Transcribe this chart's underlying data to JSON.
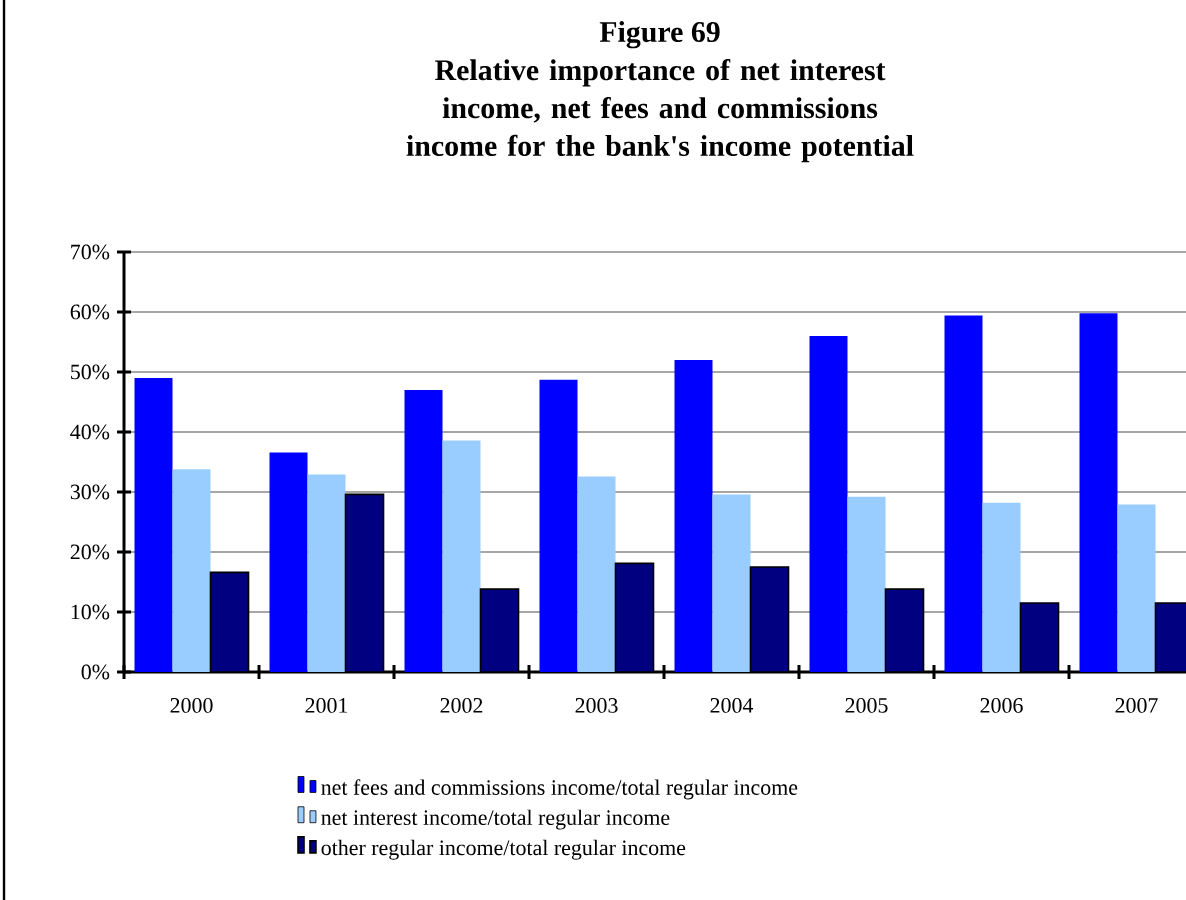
{
  "chart_data": {
    "type": "bar",
    "title": "Figure 69",
    "subtitle": "Relative importance of net interest income, net fees and commissions income for the bank's income potential",
    "categories": [
      "2000",
      "2001",
      "2002",
      "2003",
      "2004",
      "2005",
      "2006",
      "2007"
    ],
    "series": [
      {
        "name": "net fees and commissions income/total regular income",
        "color": "#0000ff",
        "values": [
          49.0,
          36.6,
          47.0,
          48.7,
          52.0,
          56.0,
          59.4,
          59.8
        ]
      },
      {
        "name": "net interest income/total regular income",
        "color": "#99ccff",
        "values": [
          33.8,
          32.9,
          38.6,
          32.6,
          29.6,
          29.2,
          28.2,
          27.9
        ]
      },
      {
        "name": "other regular income/total regular income",
        "color": "#000080",
        "values": [
          16.6,
          29.6,
          13.8,
          18.1,
          17.5,
          13.8,
          11.5,
          11.5
        ]
      }
    ],
    "ylim": [
      0,
      70
    ],
    "yticks": [
      {
        "value": 0,
        "label": "0%"
      },
      {
        "value": 10,
        "label": "10%"
      },
      {
        "value": 20,
        "label": "20%"
      },
      {
        "value": 30,
        "label": "30%"
      },
      {
        "value": 40,
        "label": "40%"
      },
      {
        "value": 50,
        "label": "50%"
      },
      {
        "value": 60,
        "label": "60%"
      },
      {
        "value": 70,
        "label": "70%"
      }
    ],
    "grid": "y",
    "legend": "bottom"
  }
}
